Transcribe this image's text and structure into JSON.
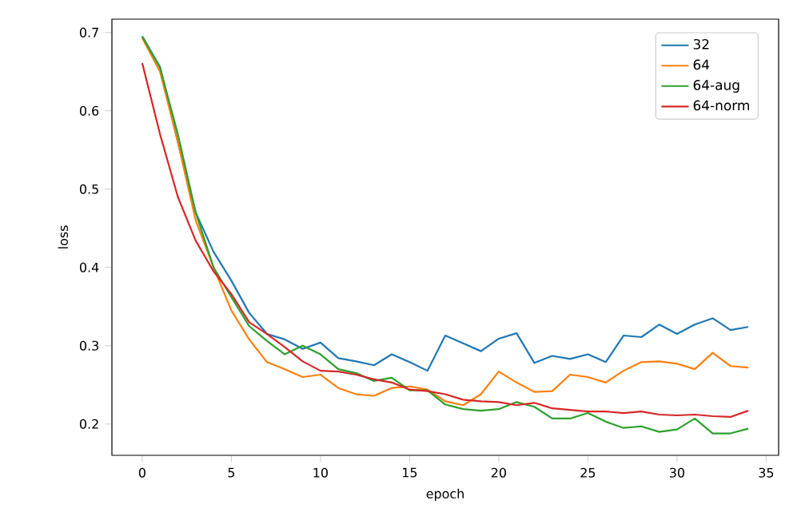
{
  "chart_data": {
    "type": "line",
    "xlabel": "epoch",
    "ylabel": "loss",
    "x": [
      0,
      1,
      2,
      3,
      4,
      5,
      6,
      7,
      8,
      9,
      10,
      11,
      12,
      13,
      14,
      15,
      16,
      17,
      18,
      19,
      20,
      21,
      22,
      23,
      24,
      25,
      26,
      27,
      28,
      29,
      30,
      31,
      32,
      33,
      34
    ],
    "series": [
      {
        "name": "32",
        "color": "#1f77b4",
        "values": [
          0.695,
          0.656,
          0.56,
          0.47,
          0.42,
          0.383,
          0.342,
          0.315,
          0.308,
          0.296,
          0.304,
          0.284,
          0.28,
          0.275,
          0.289,
          0.279,
          0.268,
          0.313,
          0.303,
          0.293,
          0.309,
          0.316,
          0.278,
          0.287,
          0.283,
          0.289,
          0.279,
          0.313,
          0.311,
          0.327,
          0.315,
          0.327,
          0.335,
          0.32,
          0.324
        ]
      },
      {
        "name": "64",
        "color": "#ff7f0e",
        "values": [
          0.693,
          0.65,
          0.56,
          0.46,
          0.4,
          0.345,
          0.308,
          0.279,
          0.27,
          0.26,
          0.263,
          0.246,
          0.238,
          0.236,
          0.246,
          0.248,
          0.244,
          0.229,
          0.224,
          0.238,
          0.267,
          0.253,
          0.241,
          0.242,
          0.263,
          0.26,
          0.253,
          0.268,
          0.279,
          0.28,
          0.277,
          0.27,
          0.291,
          0.274,
          0.272
        ]
      },
      {
        "name": "64-aug",
        "color": "#2ca02c",
        "values": [
          0.695,
          0.655,
          0.57,
          0.47,
          0.4,
          0.362,
          0.325,
          0.306,
          0.289,
          0.3,
          0.289,
          0.27,
          0.265,
          0.255,
          0.259,
          0.243,
          0.243,
          0.225,
          0.219,
          0.217,
          0.219,
          0.228,
          0.222,
          0.207,
          0.207,
          0.214,
          0.203,
          0.195,
          0.197,
          0.19,
          0.193,
          0.207,
          0.188,
          0.188,
          0.194
        ]
      },
      {
        "name": "64-norm",
        "color": "#d62728",
        "values": [
          0.661,
          0.57,
          0.49,
          0.434,
          0.395,
          0.366,
          0.33,
          0.315,
          0.298,
          0.28,
          0.268,
          0.267,
          0.263,
          0.257,
          0.253,
          0.244,
          0.242,
          0.238,
          0.231,
          0.229,
          0.228,
          0.224,
          0.227,
          0.22,
          0.218,
          0.216,
          0.216,
          0.214,
          0.216,
          0.212,
          0.211,
          0.212,
          0.21,
          0.209,
          0.217
        ]
      }
    ],
    "xlim": [
      -1.7,
      35.7
    ],
    "ylim": [
      0.16,
      0.717
    ],
    "xticks": [
      0,
      5,
      10,
      15,
      20,
      25,
      30,
      35
    ],
    "yticks": [
      0.2,
      0.3,
      0.4,
      0.5,
      0.6,
      0.7
    ],
    "legend": "top right",
    "grid": false,
    "marker": "none",
    "line_style": "solid"
  }
}
